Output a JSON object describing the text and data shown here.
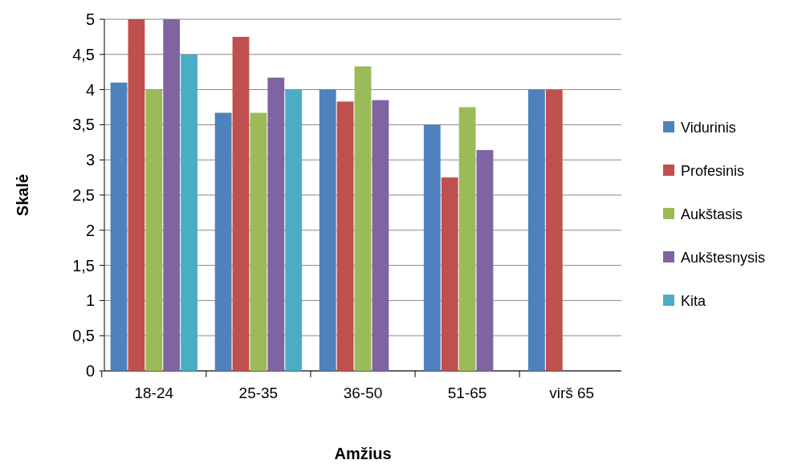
{
  "chart_data": {
    "type": "bar",
    "xlabel": "Amžius",
    "ylabel": "Skalė",
    "categories": [
      "18-24",
      "25-35",
      "36-50",
      "51-65",
      "virš 65"
    ],
    "series": [
      {
        "name": "Vidurinis",
        "color": "#4f81bd",
        "values": [
          4.1,
          3.67,
          4,
          3.5,
          4
        ]
      },
      {
        "name": "Profesinis",
        "color": "#c0504d",
        "values": [
          5,
          4.75,
          3.83,
          2.75,
          4
        ]
      },
      {
        "name": "Aukštasis",
        "color": "#9bbb59",
        "values": [
          4,
          3.67,
          4.33,
          3.75,
          null
        ]
      },
      {
        "name": "Aukštesnysis",
        "color": "#8064a2",
        "values": [
          5,
          4.17,
          3.85,
          3.14,
          null
        ]
      },
      {
        "name": "Kita",
        "color": "#4bacc6",
        "values": [
          4.5,
          4,
          null,
          null,
          null
        ]
      }
    ],
    "ylim": [
      0,
      5
    ],
    "yticks": [
      0,
      {
        "value": 0.5,
        "label": "0,5"
      },
      1,
      {
        "value": 1.5,
        "label": "1,5"
      },
      2,
      {
        "value": 2.5,
        "label": "2,5"
      },
      3,
      {
        "value": 3.5,
        "label": "3,5"
      },
      4,
      {
        "value": 4.5,
        "label": "4,5"
      },
      5
    ],
    "grid": "y",
    "legend": "right"
  }
}
